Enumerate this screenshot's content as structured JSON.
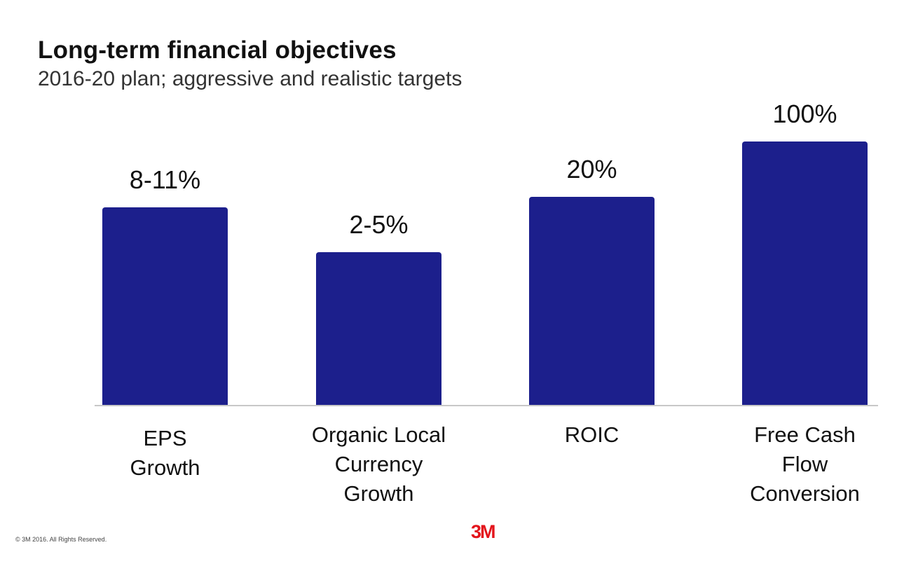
{
  "chart_data": {
    "type": "bar",
    "title": "Long-term financial objectives",
    "subtitle": "2016-20 plan; aggressive and realistic targets",
    "categories": [
      "EPS\nGrowth",
      "Organic Local\nCurrency\nGrowth",
      "ROIC",
      "Free Cash\nFlow\nConversion"
    ],
    "value_labels": [
      "8-11%",
      "2-5%",
      "20%",
      "100%"
    ],
    "relative_heights": [
      0.75,
      0.58,
      0.79,
      1.0
    ],
    "xlabel": "",
    "ylabel": "",
    "grid": false,
    "bar_color": "#1c1f8c"
  },
  "footer": {
    "copyright": "© 3M 2016. All Rights Reserved.",
    "logo": "3M",
    "logo_color": "#e3141b"
  }
}
